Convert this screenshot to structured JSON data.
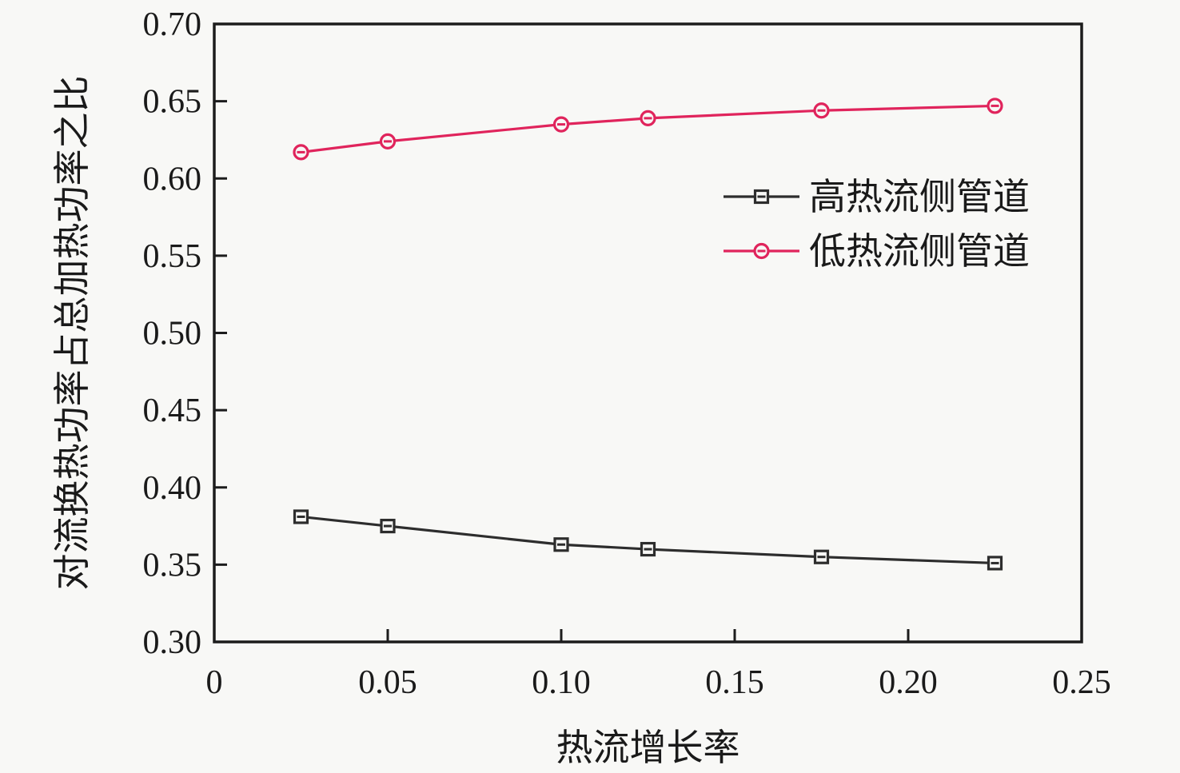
{
  "figure": {
    "background": "#f8f8f6",
    "frame_color": "#1c1c1c",
    "text_color": "#1a1a1a"
  },
  "chart_data": {
    "type": "line",
    "title": "",
    "xlabel": "热流增长率",
    "ylabel": "对流换热功率占总加热功率之比",
    "xlim": [
      0,
      0.25
    ],
    "ylim": [
      0.3,
      0.7
    ],
    "xticks": [
      0,
      0.05,
      0.1,
      0.15,
      0.2,
      0.25
    ],
    "xtick_labels": [
      "0",
      "0.05",
      "0.10",
      "0.15",
      "0.20",
      "0.25"
    ],
    "yticks": [
      0.3,
      0.35,
      0.4,
      0.45,
      0.5,
      0.55,
      0.6,
      0.65,
      0.7
    ],
    "ytick_labels": [
      "0.30",
      "0.35",
      "0.40",
      "0.45",
      "0.50",
      "0.55",
      "0.60",
      "0.65",
      "0.70"
    ],
    "grid": false,
    "legend_position": "inside-upper-right",
    "x": [
      0.025,
      0.05,
      0.1,
      0.125,
      0.175,
      0.225
    ],
    "series": [
      {
        "name": "高热流侧管道",
        "values": [
          0.381,
          0.375,
          0.363,
          0.36,
          0.355,
          0.351
        ],
        "color": "#2d2d2d",
        "marker": "square"
      },
      {
        "name": "低热流侧管道",
        "values": [
          0.617,
          0.624,
          0.635,
          0.639,
          0.644,
          0.647
        ],
        "color": "#e0245c",
        "marker": "circle"
      }
    ]
  }
}
